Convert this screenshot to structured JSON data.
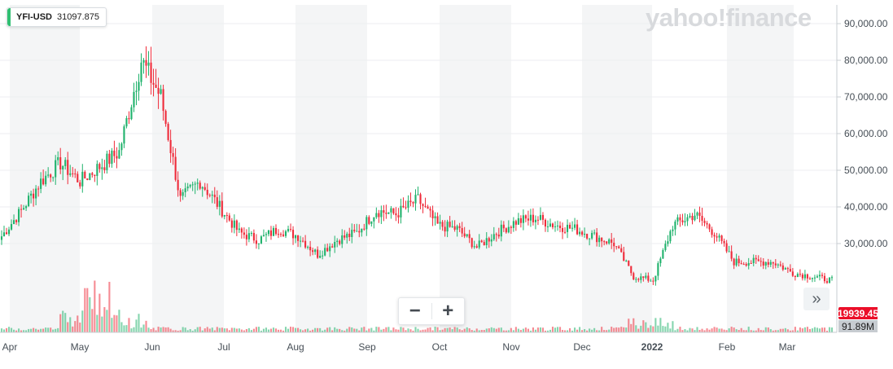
{
  "ticker": {
    "symbol": "YFI-USD",
    "price": "31097.875"
  },
  "watermark": "yahoo!finance",
  "controls": {
    "zoom_out": "−",
    "zoom_in": "+",
    "scroll_right": "»"
  },
  "badges": {
    "last_price": "19939.45",
    "last_volume": "91.89M"
  },
  "colors": {
    "up": "#20b26c",
    "down": "#ef2b3a",
    "band": "#f4f5f6",
    "accent": "#2fbf71",
    "badge": "#eb0f29"
  },
  "chart_data": {
    "type": "candlestick",
    "title": "YFI-USD",
    "xlabel": "",
    "ylabel": "",
    "ylim": [
      0,
      95000
    ],
    "y_ticks": [
      "30,000.00",
      "40,000.00",
      "50,000.00",
      "60,000.00",
      "70,000.00",
      "80,000.00",
      "90,000.00"
    ],
    "y_tick_values": [
      30000,
      40000,
      50000,
      60000,
      70000,
      80000,
      90000
    ],
    "x_ticks": [
      "Apr",
      "May",
      "Jun",
      "Jul",
      "Aug",
      "Sep",
      "Oct",
      "Nov",
      "Dec",
      "2022",
      "Feb",
      "Mar"
    ],
    "grid": true,
    "volume": {
      "last": "91.89M"
    },
    "series": [
      {
        "name": "YFI-USD",
        "close_points": [
          [
            "Apr",
            32000
          ],
          [
            "Apr",
            39000
          ],
          [
            "Apr",
            47000
          ],
          [
            "Apr",
            52000
          ],
          [
            "May",
            47000
          ],
          [
            "May",
            51000
          ],
          [
            "May",
            55000
          ],
          [
            "May",
            80000
          ],
          [
            "May",
            70000
          ],
          [
            "Jun",
            42000
          ],
          [
            "Jun",
            47000
          ],
          [
            "Jun",
            40000
          ],
          [
            "Jun",
            33000
          ],
          [
            "Jul",
            31000
          ],
          [
            "Jul",
            34000
          ],
          [
            "Jul",
            32000
          ],
          [
            "Aug",
            27000
          ],
          [
            "Aug",
            31000
          ],
          [
            "Aug",
            33000
          ],
          [
            "Aug",
            39000
          ],
          [
            "Aug",
            38000
          ],
          [
            "Sep",
            42000
          ],
          [
            "Sep",
            35000
          ],
          [
            "Sep",
            34000
          ],
          [
            "Oct",
            29000
          ],
          [
            "Oct",
            33000
          ],
          [
            "Oct",
            36000
          ],
          [
            "Oct",
            37000
          ],
          [
            "Nov",
            35000
          ],
          [
            "Nov",
            34000
          ],
          [
            "Nov",
            32000
          ],
          [
            "Dec",
            30000
          ],
          [
            "Dec",
            21000
          ],
          [
            "Dec",
            20000
          ],
          [
            "2022",
            35000
          ],
          [
            "2022",
            38000
          ],
          [
            "2022",
            33000
          ],
          [
            "Feb",
            25000
          ],
          [
            "Feb",
            25000
          ],
          [
            "Feb",
            25000
          ],
          [
            "Mar",
            22000
          ],
          [
            "Mar",
            21000
          ],
          [
            "Mar",
            19939
          ]
        ]
      }
    ]
  }
}
